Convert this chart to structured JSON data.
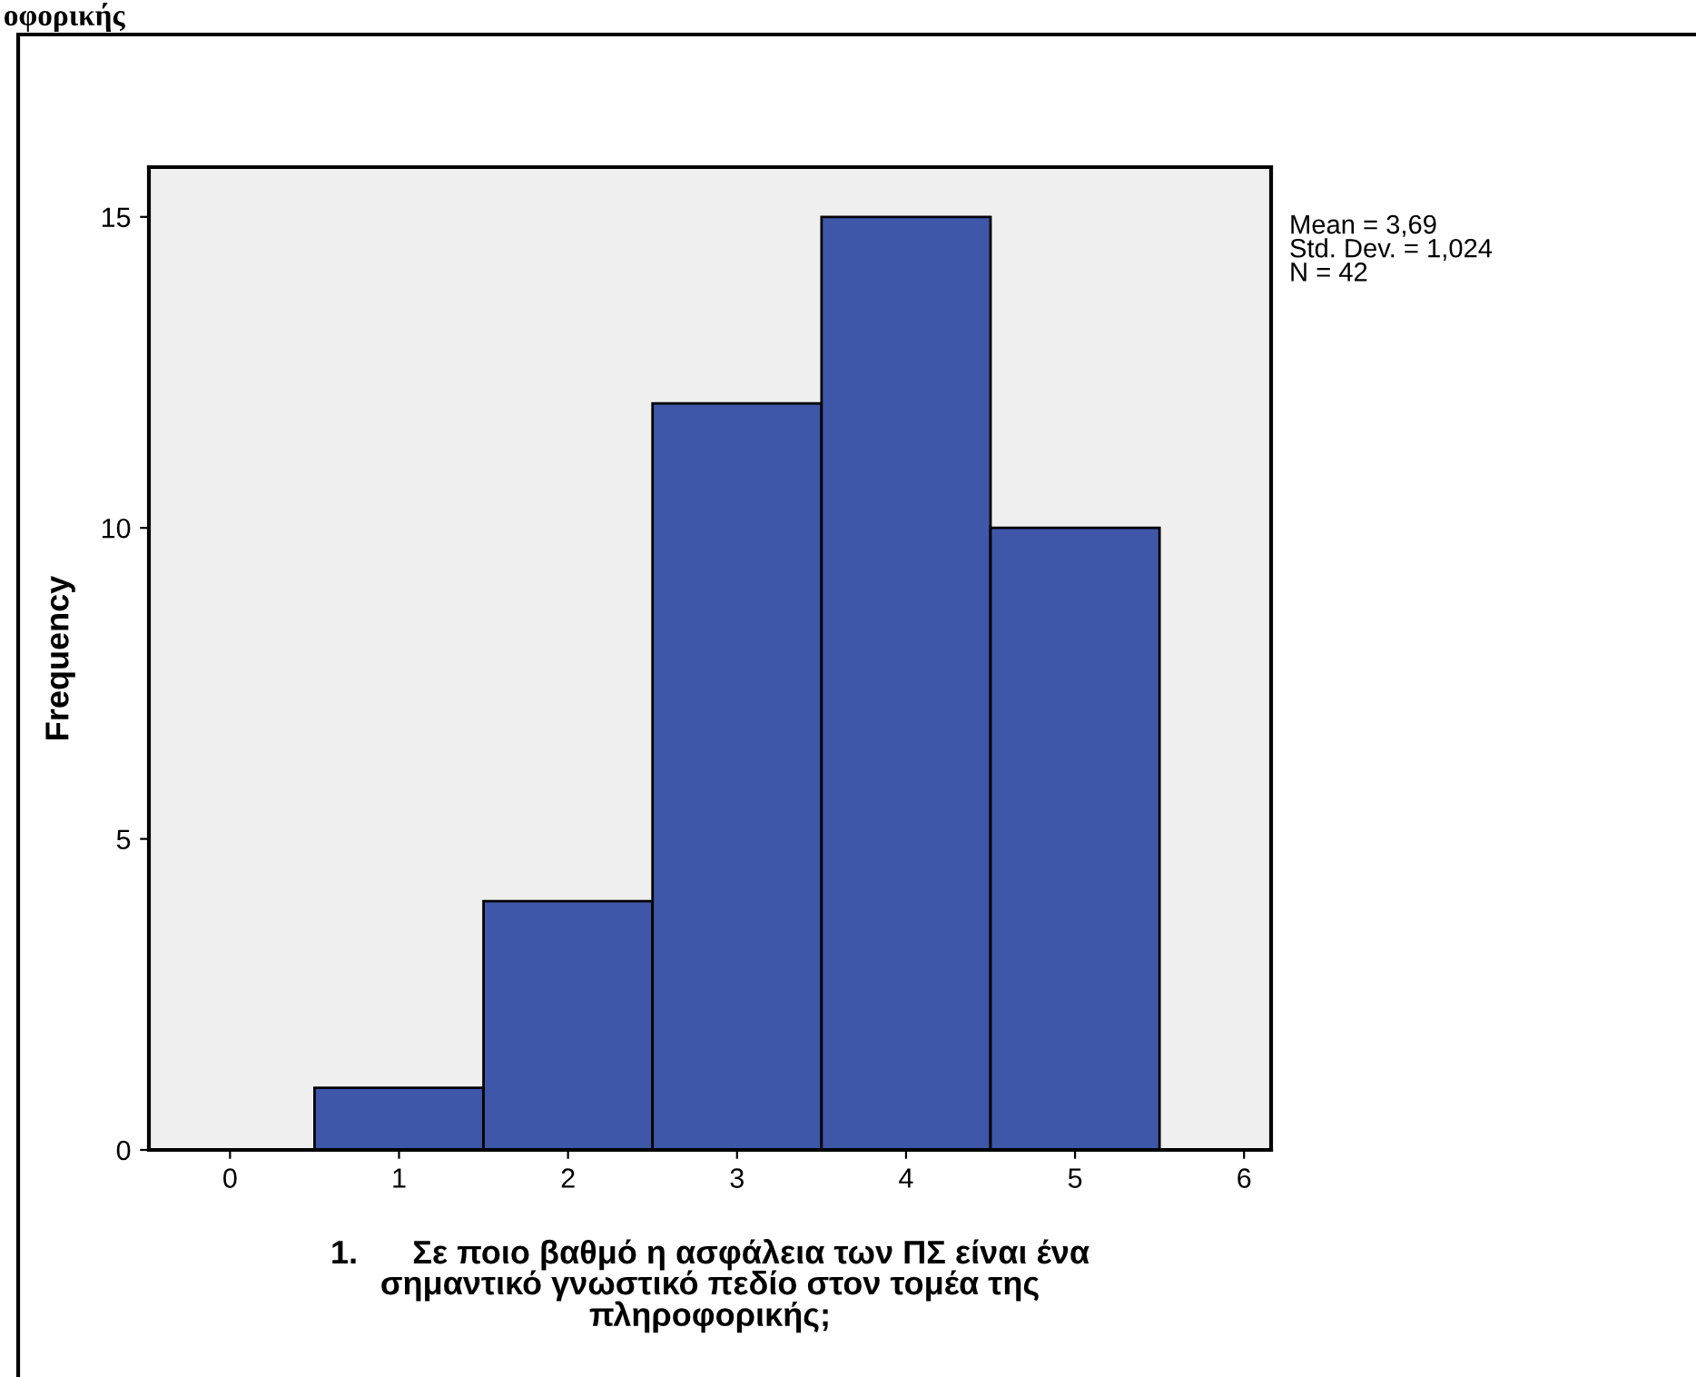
{
  "chart_data": {
    "type": "histogram",
    "bins": [
      0.5,
      1.5,
      2.5,
      3.5,
      4.5,
      5.5
    ],
    "values": [
      1,
      4,
      12,
      15,
      10
    ],
    "color": "#3f57a9",
    "xlabel": "1.      Σε ποιο βαθμό η ασφάλεια των ΠΣ είναι ένα\nσημαντικό γνωστικό πεδίο στον τομέα της\nπληροφορικής;",
    "ylabel": "Frequency",
    "xlim": [
      -0.48,
      6.16
    ],
    "xticks": [
      0,
      1,
      2,
      3,
      4,
      5,
      6
    ],
    "ylim": [
      0,
      15.8
    ],
    "yticks": [
      0,
      5,
      10,
      15
    ],
    "grid": false,
    "legend": false,
    "annotations": [
      "οφορικής",
      "Mean = 3,69\nStd. Dev. = 1,024\nN = 42"
    ]
  }
}
